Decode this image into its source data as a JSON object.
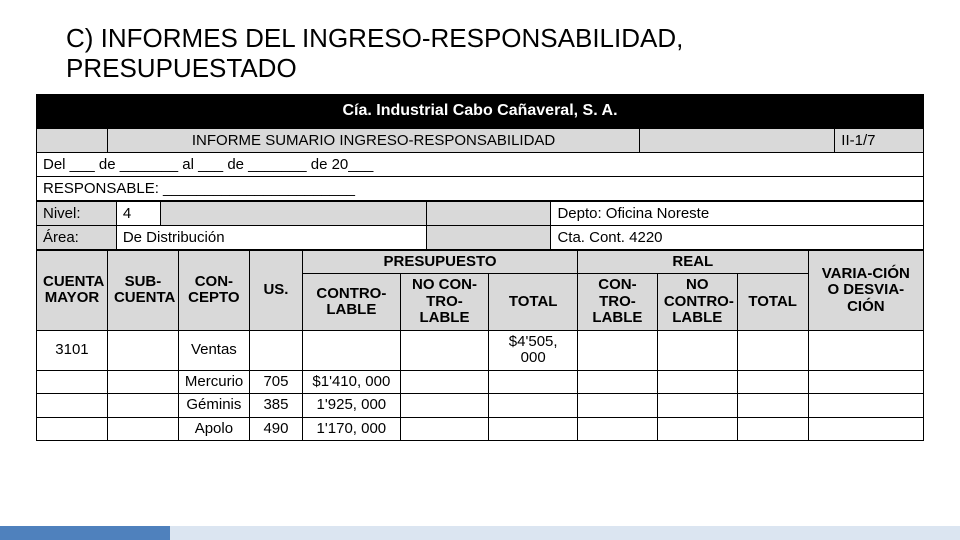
{
  "title": "C) INFORMES DEL INGRESO-RESPONSABILIDAD, PRESUPUESTADO",
  "company_band": "Cía. Industrial Cabo Cañaveral, S. A.",
  "report_title": "INFORME SUMARIO INGRESO-RESPONSABILIDAD",
  "report_code": "II-1/7",
  "date_line": "Del ___ de _______ al ___ de _______ de 20___",
  "responsable_line": "RESPONSABLE: _______________________",
  "nivel_label": "Nivel:",
  "nivel_value": "4",
  "depto_line": "Depto: Oficina Noreste",
  "area_label": "Área:",
  "area_value": "De Distribución",
  "cta_line": "Cta. Cont. 4220",
  "headers": {
    "cuenta_mayor": "CUENTA MAYOR",
    "sub_cuenta": "SUB-CUENTA",
    "concepto": "CON-CEPTO",
    "us": "US.",
    "presupuesto": "PRESUPUESTO",
    "real": "REAL",
    "controlable": "CONTRO-LABLE",
    "no_controlable": "NO CON-TRO-LABLE",
    "total": "TOTAL",
    "real_controlable": "CON-TRO-LABLE",
    "real_no_controlable": "NO CONTRO-LABLE",
    "varia": "VARIA-CIÓN O DESVIA-CIÓN"
  },
  "rows": [
    {
      "cuenta_mayor": "3101",
      "sub_cuenta": "",
      "concepto": "Ventas",
      "us": "",
      "pres_contro": "",
      "pres_nocontro": "",
      "pres_total": "$4'505, 000",
      "real_contro": "",
      "real_nocontro": "",
      "real_total": "",
      "varia": ""
    },
    {
      "cuenta_mayor": "",
      "sub_cuenta": "",
      "concepto": "Mercurio",
      "us": "705",
      "pres_contro": "$1'410, 000",
      "pres_nocontro": "",
      "pres_total": "",
      "real_contro": "",
      "real_nocontro": "",
      "real_total": "",
      "varia": ""
    },
    {
      "cuenta_mayor": "",
      "sub_cuenta": "",
      "concepto": "Géminis",
      "us": "385",
      "pres_contro": "1'925, 000",
      "pres_nocontro": "",
      "pres_total": "",
      "real_contro": "",
      "real_nocontro": "",
      "real_total": "",
      "varia": ""
    },
    {
      "cuenta_mayor": "",
      "sub_cuenta": "",
      "concepto": "Apolo",
      "us": "490",
      "pres_contro": "1'170, 000",
      "pres_nocontro": "",
      "pres_total": "",
      "real_contro": "",
      "real_nocontro": "",
      "real_total": "",
      "varia": ""
    }
  ],
  "colors": {
    "black": "#000000",
    "gray": "#d9d9d9",
    "white": "#ffffff",
    "accent_bar_dark": "#4f81bd",
    "accent_bar_light": "#dbe5f1"
  }
}
